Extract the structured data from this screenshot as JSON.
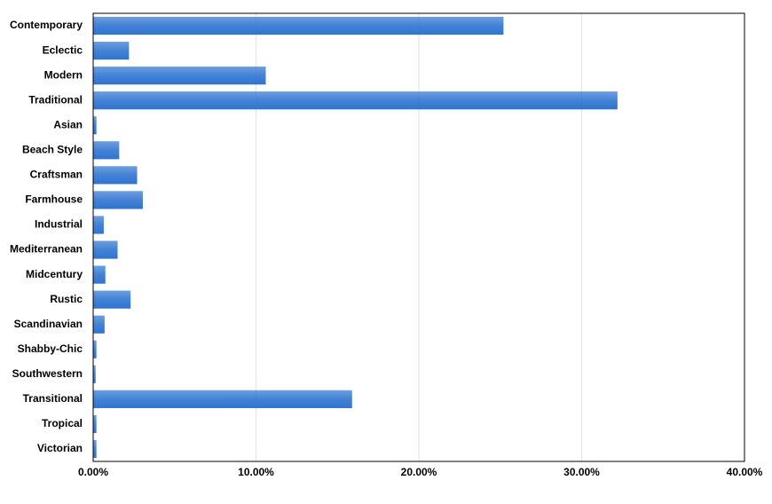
{
  "chart_data": {
    "type": "hbar",
    "categories": [
      "Contemporary",
      "Eclectic",
      "Modern",
      "Traditional",
      "Asian",
      "Beach Style",
      "Craftsman",
      "Farmhouse",
      "Industrial",
      "Mediterranean",
      "Midcentury",
      "Rustic",
      "Scandinavian",
      "Shabby-Chic",
      "Southwestern",
      "Transitional",
      "Tropical",
      "Victorian"
    ],
    "values": [
      25.2,
      2.2,
      10.6,
      32.2,
      0.2,
      1.6,
      2.7,
      3.05,
      0.65,
      1.5,
      0.75,
      2.3,
      0.7,
      0.2,
      0.15,
      15.9,
      0.2,
      0.2
    ],
    "color": "#2f74d0",
    "xlim": [
      0,
      40
    ],
    "xticks": [
      {
        "value": 0,
        "label": "0.00%"
      },
      {
        "value": 10,
        "label": "10.00%"
      },
      {
        "value": 20,
        "label": "20.00%"
      },
      {
        "value": 30,
        "label": "30.00%"
      },
      {
        "value": 40,
        "label": "40.00%"
      }
    ],
    "grid": true
  }
}
